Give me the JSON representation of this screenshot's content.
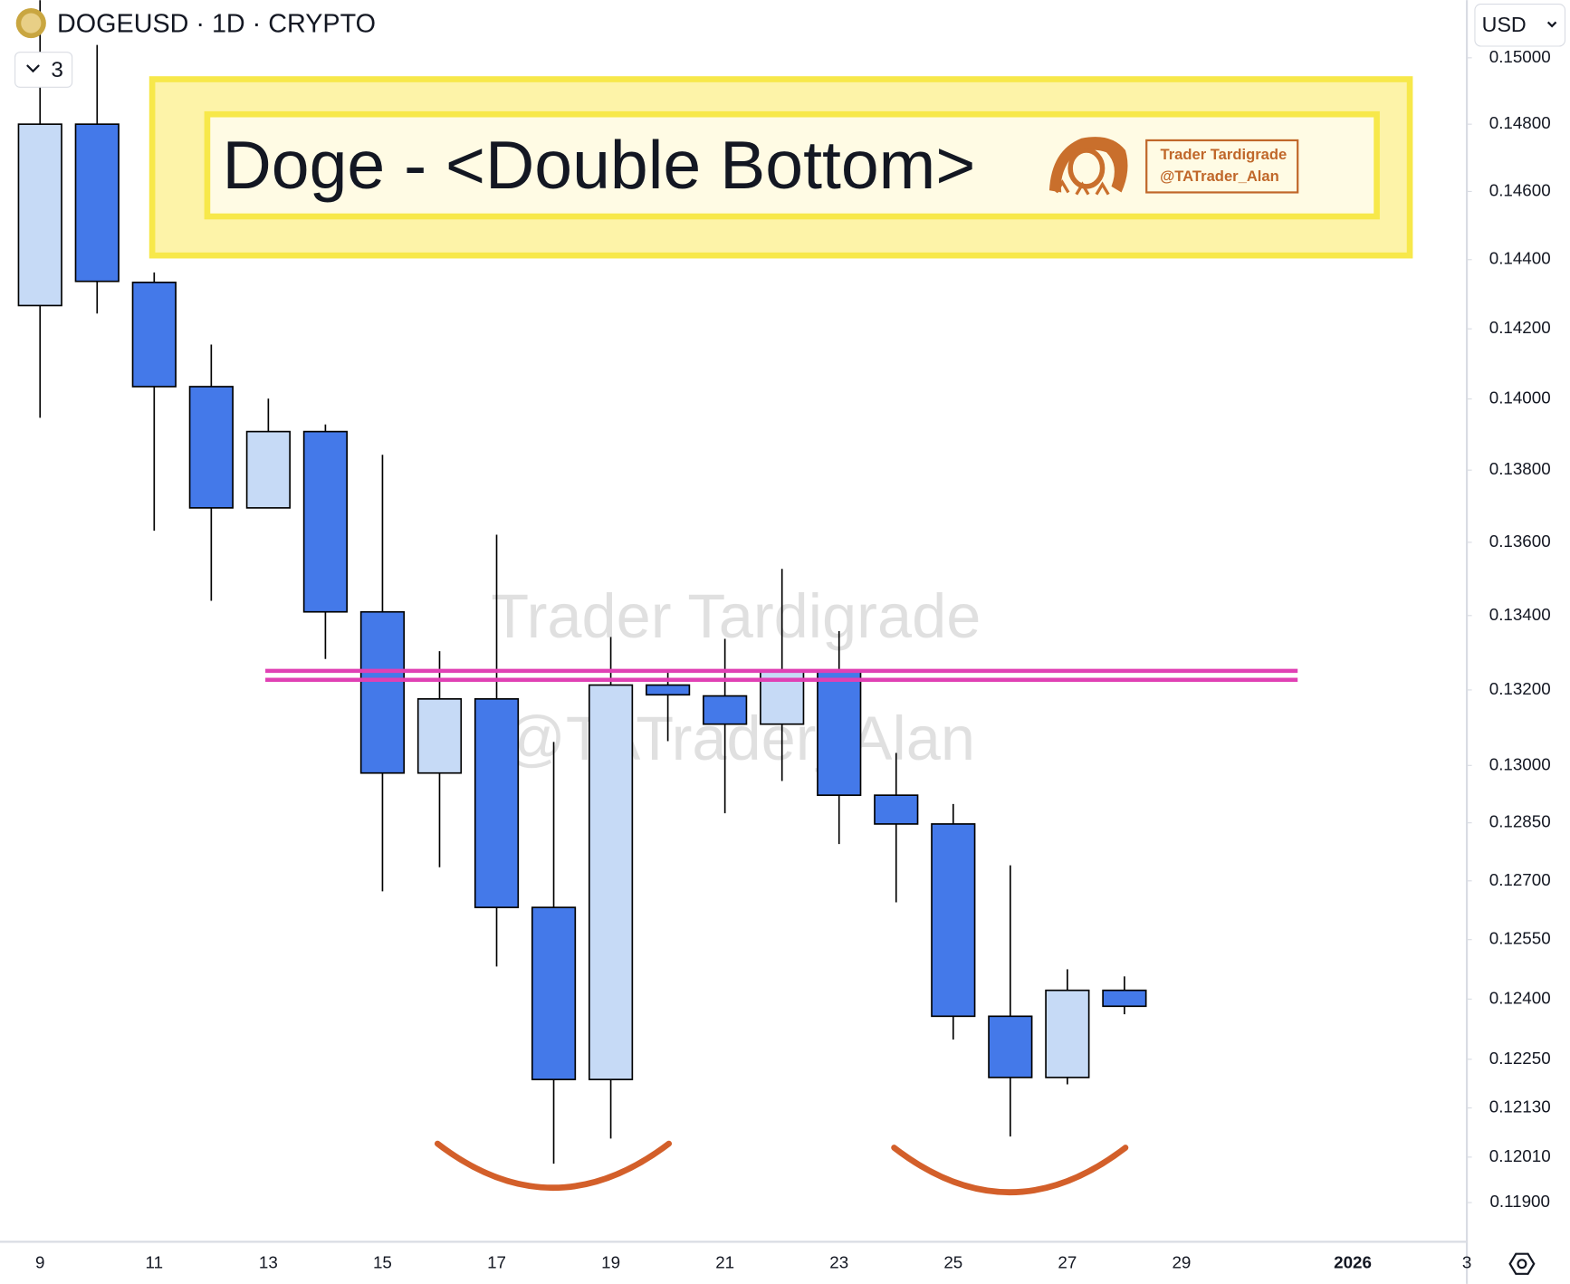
{
  "chart_data": {
    "type": "candlestick",
    "title": "DOGEUSD · 1D · CRYPTO",
    "yscale": "log",
    "categories": [
      "9",
      null,
      "11",
      null,
      "13",
      null,
      "15",
      null,
      "17",
      null,
      "19",
      null,
      "21",
      null,
      "23",
      null,
      "25",
      null,
      "27",
      null,
      "29",
      null,
      null,
      "2026",
      null,
      "3"
    ],
    "open": [
      0.14267,
      0.148,
      0.14334,
      0.14035,
      0.13695,
      0.13908,
      0.1341,
      0.1298,
      0.13176,
      0.12632,
      0.122,
      0.13213,
      0.13184,
      0.13109,
      0.13251,
      0.12922,
      0.12847,
      0.12357,
      0.12205,
      0.12422,
      null,
      null,
      null,
      null,
      null,
      null
    ],
    "high": [
      0.15176,
      0.15039,
      0.14363,
      0.14155,
      0.14001,
      0.13928,
      0.13843,
      0.13304,
      0.13621,
      0.13062,
      0.13342,
      0.13251,
      0.13337,
      0.13527,
      0.13358,
      0.13033,
      0.12899,
      0.1274,
      0.12475,
      0.12457,
      null,
      null,
      null,
      null,
      null,
      null
    ],
    "low": [
      0.13947,
      0.14244,
      0.13632,
      0.1344,
      0.13695,
      0.13283,
      0.12673,
      0.12735,
      0.12482,
      0.11994,
      0.12055,
      0.13064,
      0.12875,
      0.12959,
      0.12795,
      0.12645,
      0.12299,
      0.1206,
      0.12188,
      0.12362,
      null,
      null,
      null,
      null,
      null,
      null
    ],
    "close": [
      0.148,
      0.14337,
      0.14035,
      0.13695,
      0.13908,
      0.1341,
      0.1298,
      0.13176,
      0.12632,
      0.122,
      0.13213,
      0.13187,
      0.13109,
      0.13251,
      0.12922,
      0.12847,
      0.12357,
      0.12205,
      0.12422,
      0.12382,
      null,
      null,
      null,
      null,
      null,
      null
    ],
    "up_color": "#c6daf6",
    "down_color": "#4479e9",
    "ylim": [
      0.11806,
      0.15176
    ],
    "yticks": [
      {
        "value": 0.15,
        "label": "0.15000"
      },
      {
        "value": 0.148,
        "label": "0.14800"
      },
      {
        "value": 0.146,
        "label": "0.14600"
      },
      {
        "value": 0.144,
        "label": "0.14400"
      },
      {
        "value": 0.142,
        "label": "0.14200"
      },
      {
        "value": 0.14,
        "label": "0.14000"
      },
      {
        "value": 0.138,
        "label": "0.13800"
      },
      {
        "value": 0.136,
        "label": "0.13600"
      },
      {
        "value": 0.134,
        "label": "0.13400"
      },
      {
        "value": 0.132,
        "label": "0.13200"
      },
      {
        "value": 0.13,
        "label": "0.13000"
      },
      {
        "value": 0.1285,
        "label": "0.12850"
      },
      {
        "value": 0.127,
        "label": "0.12700"
      },
      {
        "value": 0.1255,
        "label": "0.12550"
      },
      {
        "value": 0.124,
        "label": "0.12400"
      },
      {
        "value": 0.1225,
        "label": "0.12250"
      },
      {
        "value": 0.1213,
        "label": "0.12130"
      },
      {
        "value": 0.1201,
        "label": "0.12010"
      },
      {
        "value": 0.119,
        "label": "0.11900"
      }
    ],
    "grid": false,
    "resistance_lines": [
      0.13251,
      0.13227
    ],
    "resistance_color": "#e040b4"
  },
  "ui": {
    "indicator_count": 3,
    "currency": "USD"
  },
  "banner": {
    "title": "Doge - <Double Bottom>",
    "brand": "Trader Tardigrade",
    "handle": "@TATrader_Alan"
  },
  "watermark": {
    "line1": "Trader Tardigrade",
    "line2": "@TATrader_Alan"
  }
}
